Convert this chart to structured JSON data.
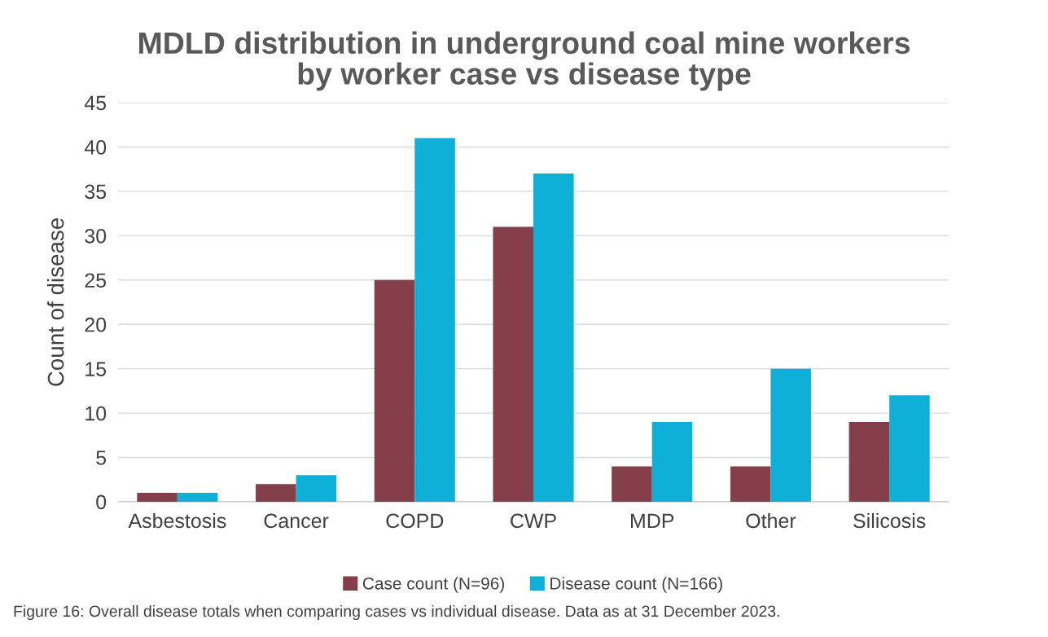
{
  "chart_data": {
    "type": "bar",
    "title": "MDLD distribution in underground coal mine workers\nby worker case vs disease type",
    "ylabel": "Count of disease",
    "categories": [
      "Asbestosis",
      "Cancer",
      "COPD",
      "CWP",
      "MDP",
      "Other",
      "Silicosis"
    ],
    "series": [
      {
        "name": "Case count (N=96)",
        "color": "#843f4a",
        "values": [
          1,
          2,
          25,
          31,
          4,
          4,
          9
        ]
      },
      {
        "name": "Disease count (N=166)",
        "color": "#0eb0d8",
        "values": [
          1,
          3,
          41,
          37,
          9,
          15,
          12
        ]
      }
    ],
    "ylim": [
      0,
      45
    ],
    "yticks": [
      0,
      5,
      10,
      15,
      20,
      25,
      30,
      35,
      40,
      45
    ],
    "grid": "y",
    "legend": "bottom",
    "annotations": [
      "Figure 16: Overall disease totals when comparing cases vs individual disease. Data as at 31 December 2023."
    ]
  }
}
